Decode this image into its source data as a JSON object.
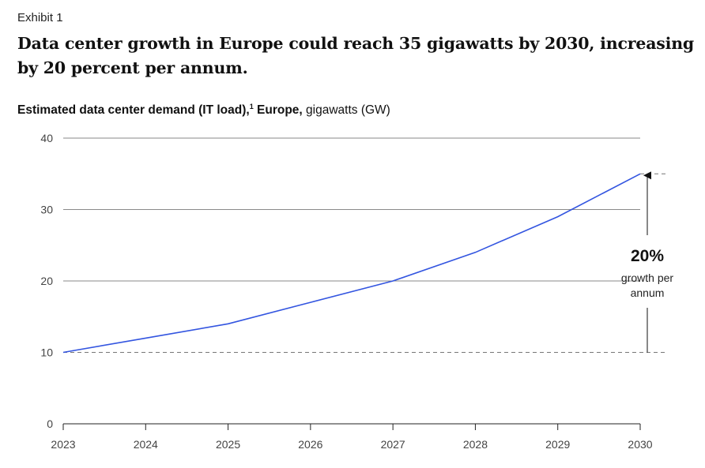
{
  "exhibit_label": "Exhibit 1",
  "headline": "Data center growth in Europe could reach 35 gigawatts by 2030, increasing by 20 percent per annum.",
  "chart_data": {
    "type": "line",
    "title_bold": "Estimated data center demand (IT load),",
    "title_footnote": "1",
    "title_bold_2": " Europe,",
    "title_unit": " gigawatts (GW)",
    "x": [
      "2023",
      "2024",
      "2025",
      "2026",
      "2027",
      "2028",
      "2029",
      "2030"
    ],
    "series": [
      {
        "values": [
          10,
          12,
          14,
          17,
          20,
          24,
          29,
          35
        ],
        "color": "#3355e0"
      }
    ],
    "yticks": [
      0,
      10,
      20,
      30,
      40
    ],
    "ylim": [
      0,
      40
    ],
    "grid": true,
    "annotation": {
      "value": "20%",
      "line1": "growth per",
      "line2": "annum",
      "from": 10,
      "to": 35
    }
  }
}
